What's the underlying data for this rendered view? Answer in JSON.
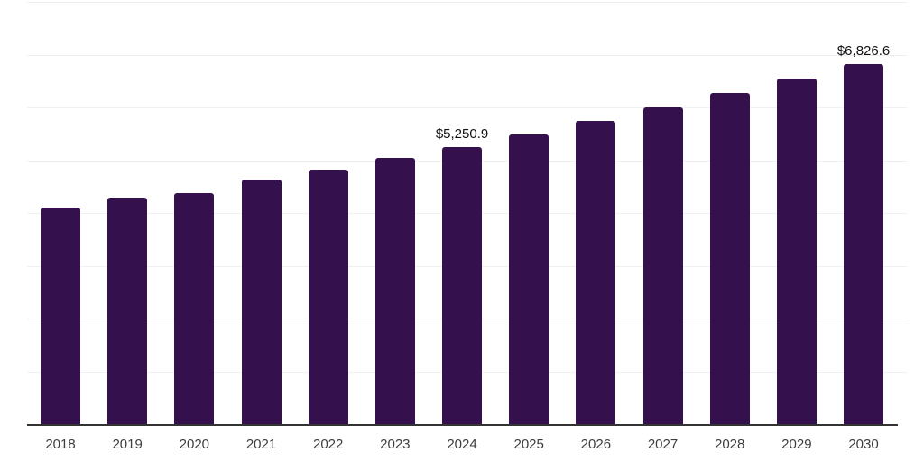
{
  "chart_data": {
    "type": "bar",
    "categories": [
      "2018",
      "2019",
      "2020",
      "2021",
      "2022",
      "2023",
      "2024",
      "2025",
      "2026",
      "2027",
      "2028",
      "2029",
      "2030"
    ],
    "values": [
      4095.0,
      4283.0,
      4369.0,
      4625.0,
      4829.0,
      5051.0,
      5250.9,
      5495.0,
      5751.0,
      6007.0,
      6280.0,
      6553.0,
      6826.6
    ],
    "data_labels": {
      "2024": "$5,250.9",
      "2030": "$6,826.6"
    },
    "title": "",
    "xlabel": "",
    "ylabel": "",
    "ylim": [
      0,
      8000
    ],
    "gridline_interval": 1000,
    "grid": true,
    "legend": false,
    "colors": {
      "bar": "#34114C",
      "gridline": "#f0f0f0",
      "axis_line": "#333333",
      "tick_label": "#3d3d3d",
      "data_label": "#111111",
      "background": "#ffffff"
    }
  }
}
